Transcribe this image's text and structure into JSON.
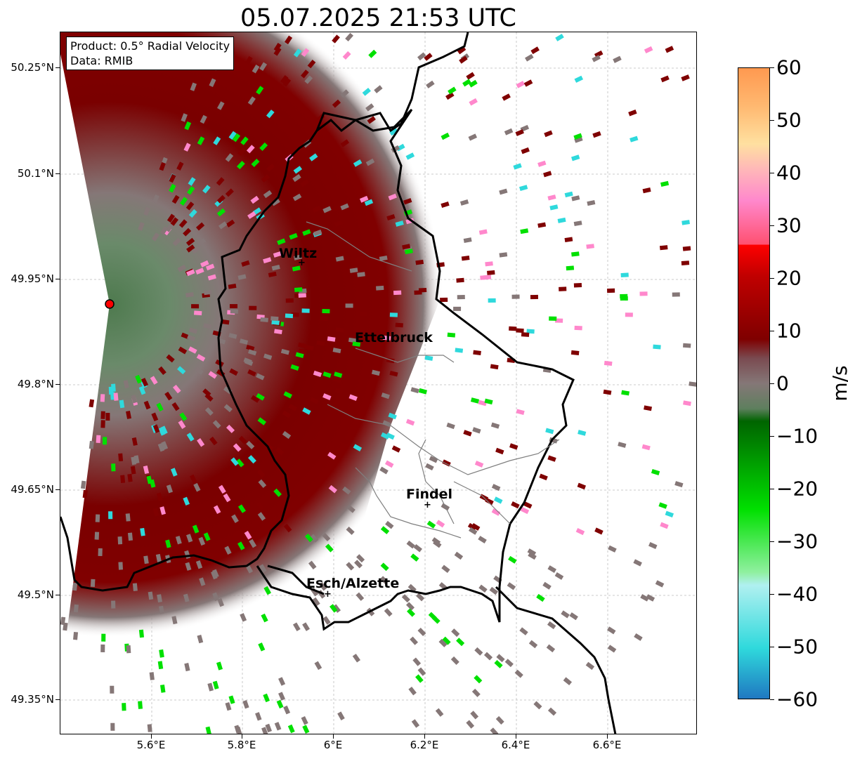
{
  "title": "05.07.2025 21:53 UTC",
  "info": {
    "product": "Product: 0.5° Radial Velocity",
    "data": "Data: RMIB"
  },
  "lat_ticks": [
    "50.25°N",
    "50.1°N",
    "49.95°N",
    "49.8°N",
    "49.65°N",
    "49.5°N",
    "49.35°N"
  ],
  "lon_ticks": [
    "5.6°E",
    "5.8°E",
    "6°E",
    "6.2°E",
    "6.4°E",
    "6.6°E"
  ],
  "cities": [
    {
      "name": "Wiltz"
    },
    {
      "name": "Ettelbruck"
    },
    {
      "name": "Findel"
    },
    {
      "name": "Esch/Alzette"
    }
  ],
  "colorbar": {
    "unit": "m/s",
    "ticks": [
      "60",
      "50",
      "40",
      "30",
      "20",
      "10",
      "0",
      "−10",
      "−20",
      "−30",
      "−40",
      "−50",
      "−60"
    ],
    "colors": {
      "neg_blue": "#1f78c1",
      "neg_cyan": "#2fd9dc",
      "neg_green": "#00e000",
      "neg_darkgreen": "#006400",
      "zero_grey": "#857777",
      "pos_darkred": "#7f0000",
      "pos_red": "#ff0000",
      "pos_pink": "#ff88cc",
      "pos_orange": "#ff9950"
    }
  },
  "radar_site_color": "#ff0000"
}
